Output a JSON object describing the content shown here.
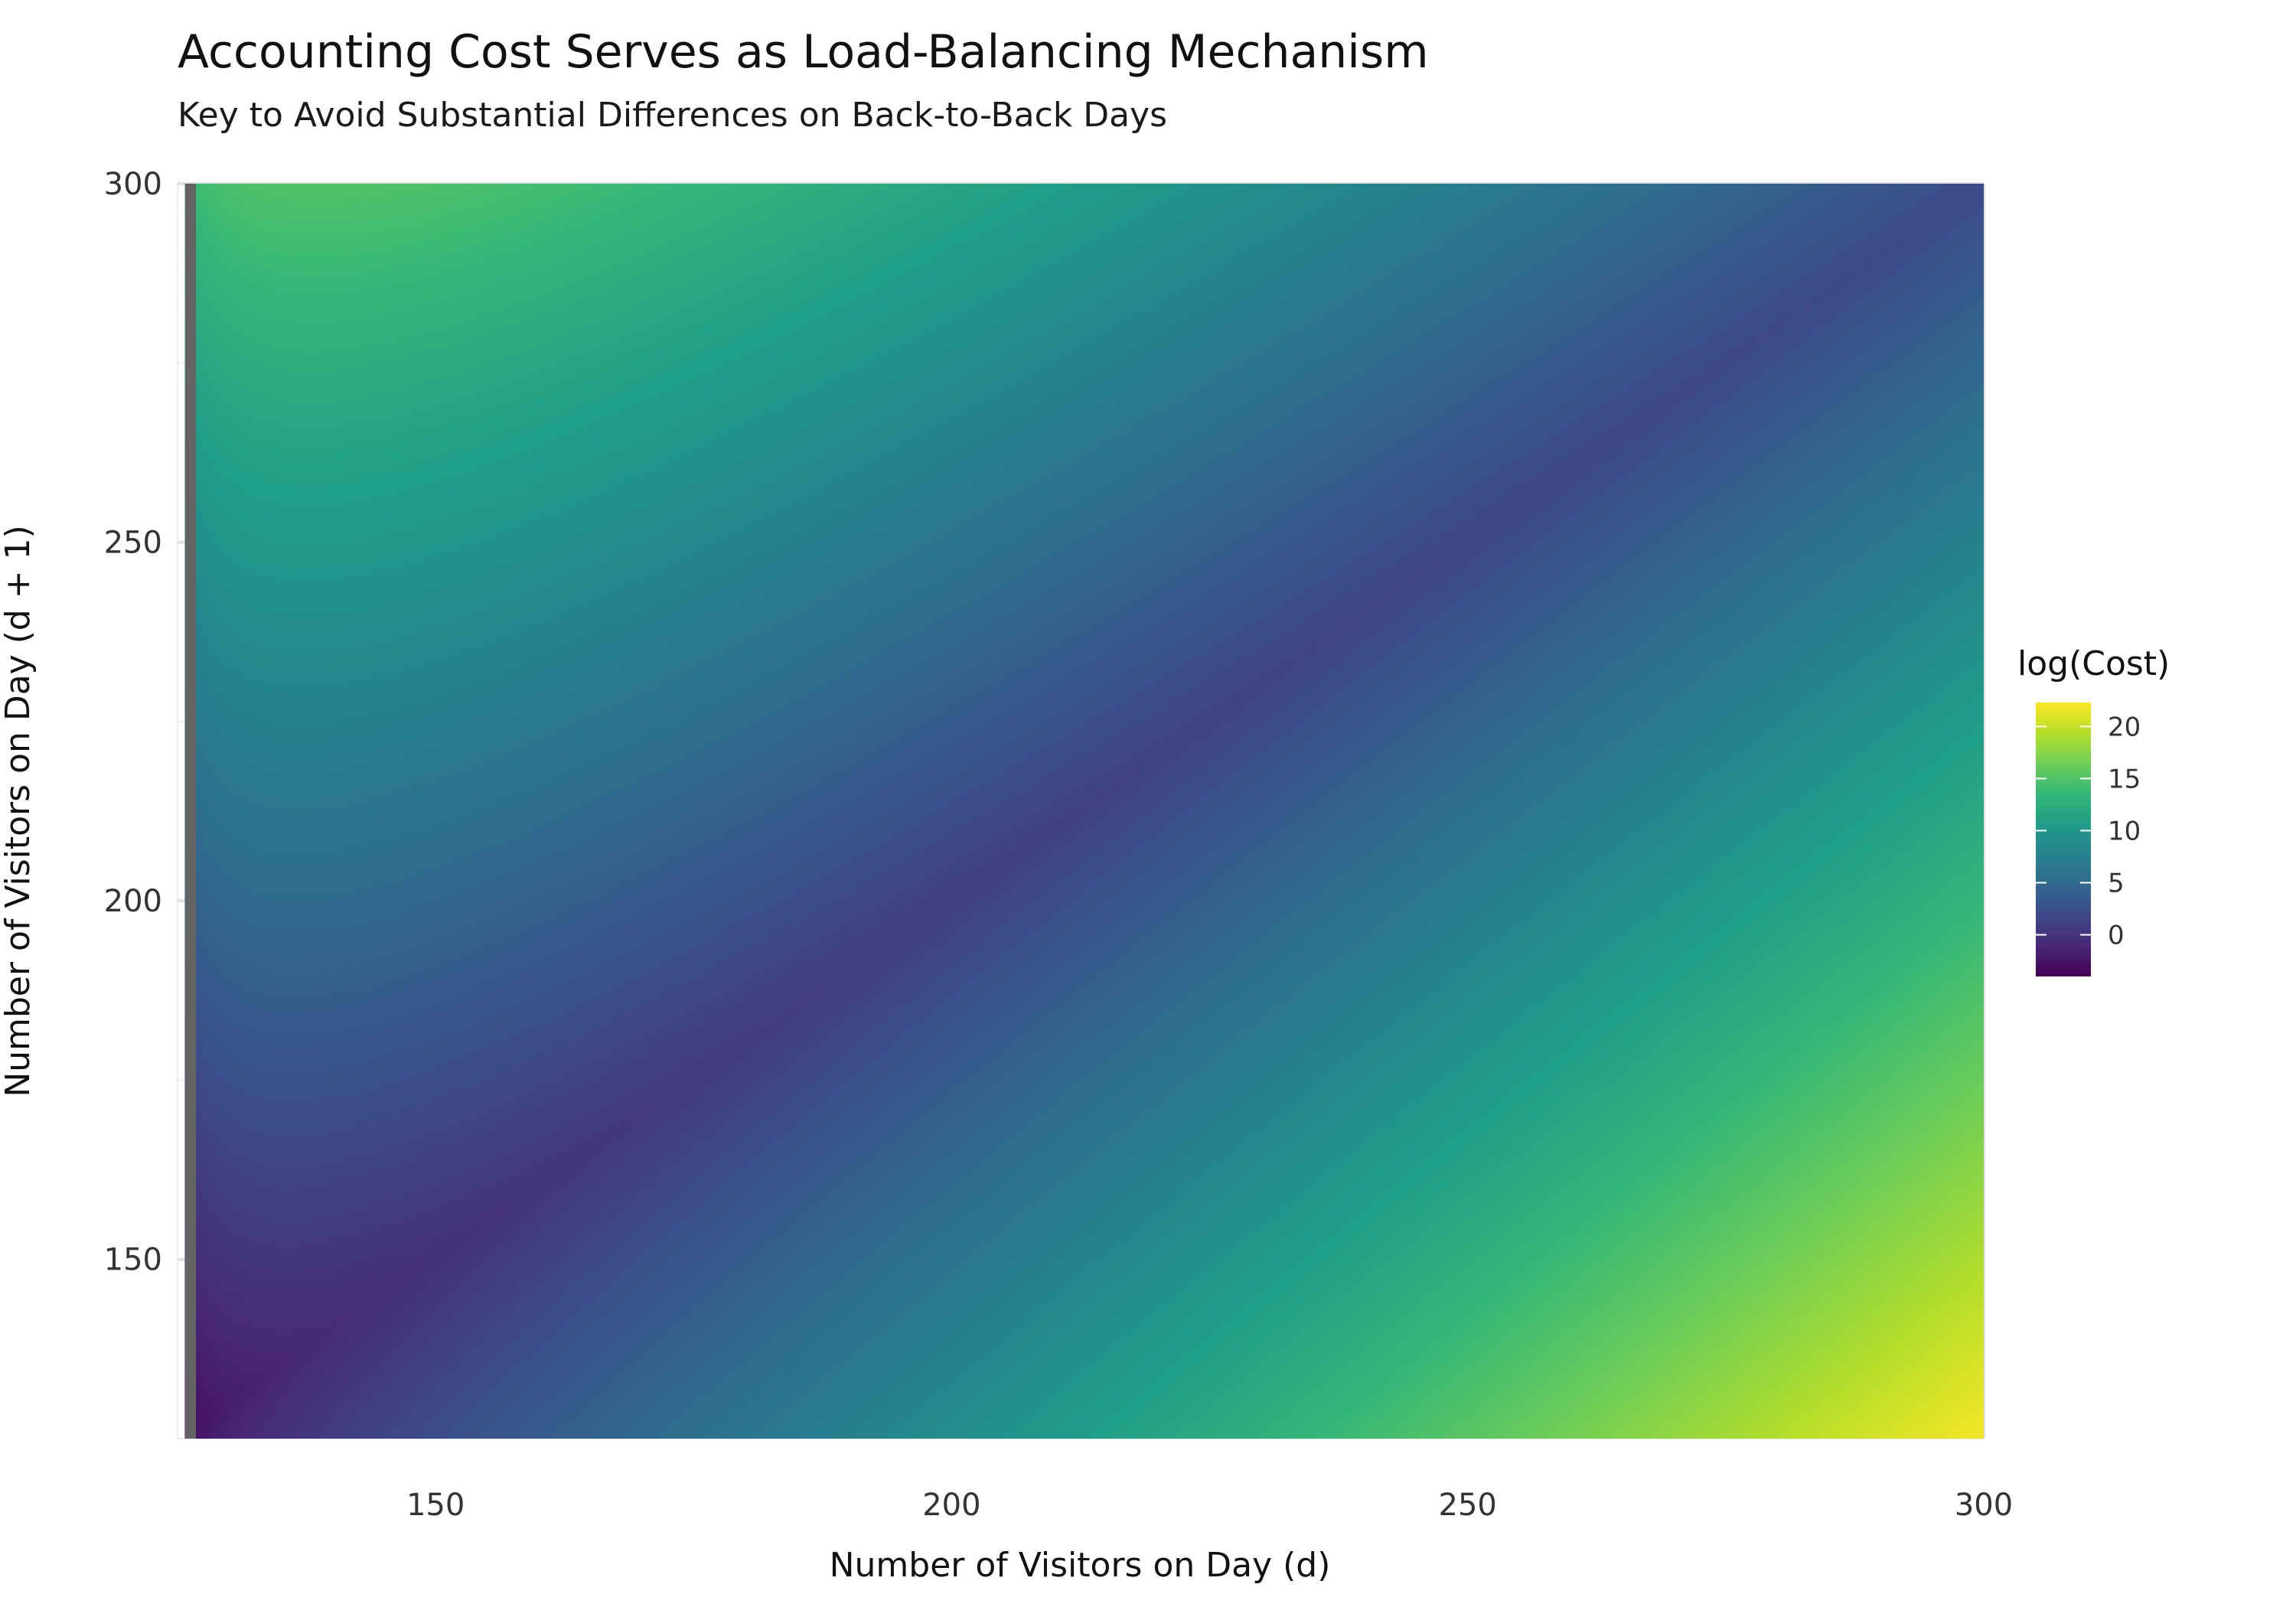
{
  "chart_data": {
    "type": "heatmap",
    "title": "Accounting Cost Serves as Load-Balancing Mechanism",
    "subtitle": "Key to Avoid Substantial Differences on Back-to-Back Days",
    "xlabel": "Number of Visitors on Day (d)",
    "ylabel": "Number of Visitors on Day (d + 1)",
    "xlim": [
      125,
      300
    ],
    "ylim": [
      125,
      300
    ],
    "x_ticks": [
      150,
      200,
      250,
      300
    ],
    "y_ticks": [
      150,
      200,
      250,
      300
    ],
    "grid": true,
    "legend": {
      "title": "log(Cost)",
      "position": "right",
      "ticks": [
        0,
        5,
        10,
        15,
        20
      ],
      "range": [
        -4,
        22.3
      ]
    },
    "colormap": [
      "#440154",
      "#482878",
      "#3e4989",
      "#31688e",
      "#26828e",
      "#1f9e89",
      "#35b779",
      "#6ece58",
      "#b5de2b",
      "#fde725"
    ],
    "boundary_stripe_color": "#636363"
  }
}
